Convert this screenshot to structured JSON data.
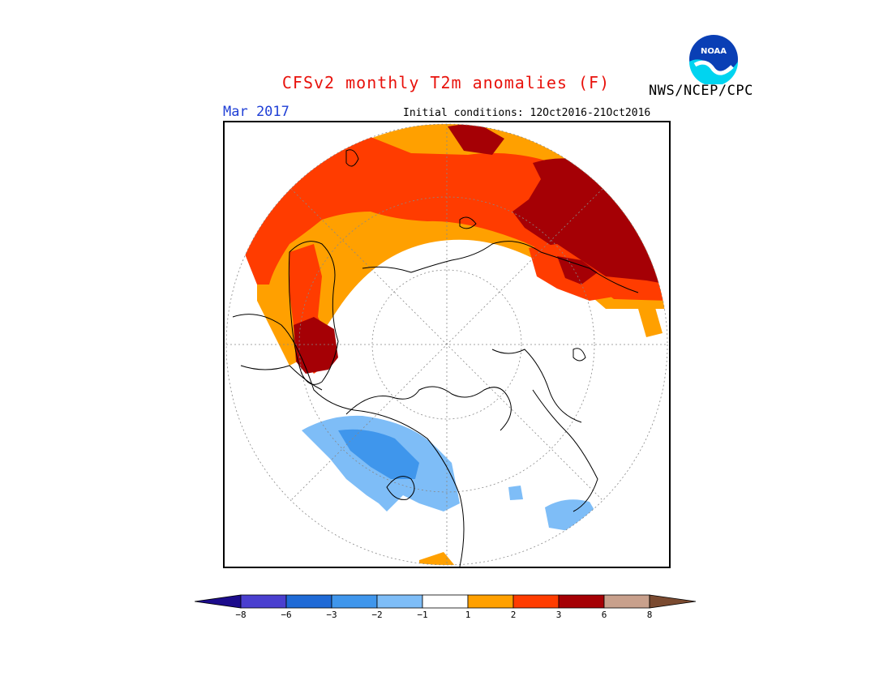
{
  "title": "CFSv2 monthly T2m anomalies (F)",
  "organization": "NWS/NCEP/CPC",
  "logo_text": "NOAA",
  "valid_month": "Mar 2017",
  "initial_conditions": "Initial conditions: 12Oct2016-21Oct2016",
  "legend": {
    "colors": [
      "#1c0c8c",
      "#4a3fcf",
      "#1f6ad6",
      "#3f96ec",
      "#7ebdf7",
      "#ffffff",
      "#ffa000",
      "#ff3c00",
      "#a50005",
      "#c8a08c",
      "#7a4a30"
    ],
    "labels": [
      "−8",
      "−6",
      "−3",
      "−2",
      "−1",
      "1",
      "2",
      "3",
      "6",
      "8"
    ]
  }
}
